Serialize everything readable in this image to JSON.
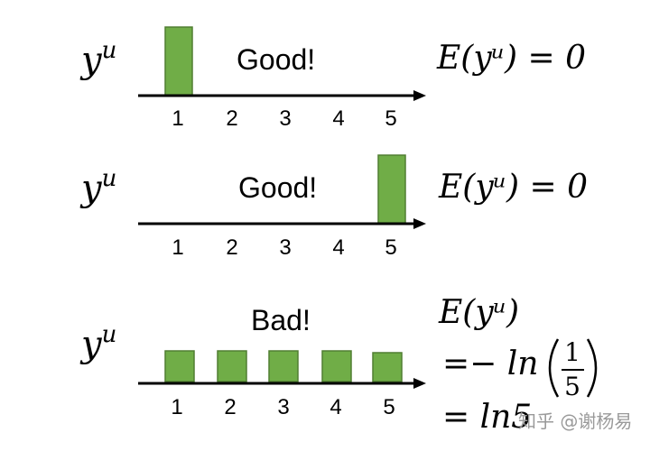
{
  "panels": [
    {
      "y_label_base": "y",
      "y_label_sup": "u",
      "verdict": "Good!",
      "entropy_label": "E(yᵘ) = 0",
      "ticks": [
        "1",
        "2",
        "3",
        "4",
        "5"
      ],
      "bar_values": [
        1,
        0,
        0,
        0,
        0
      ]
    },
    {
      "y_label_base": "y",
      "y_label_sup": "u",
      "verdict": "Good!",
      "entropy_label": "E(yᵘ) = 0",
      "ticks": [
        "1",
        "2",
        "3",
        "4",
        "5"
      ],
      "bar_values": [
        0,
        0,
        0,
        0,
        1
      ]
    },
    {
      "y_label_base": "y",
      "y_label_sup": "u",
      "verdict": "Bad!",
      "entropy_lines": [
        "E(yᵘ)",
        "=− ln",
        "= ln5"
      ],
      "fraction_numerator": "1",
      "fraction_denominator": "5",
      "ticks": [
        "1",
        "2",
        "3",
        "4",
        "5"
      ],
      "bar_values": [
        0.2,
        0.2,
        0.2,
        0.2,
        0.2
      ]
    }
  ],
  "watermark": "知乎 @谢杨易",
  "colors": {
    "bar_fill": "#70ad47",
    "bar_stroke": "#507e32",
    "axis": "#000000"
  }
}
